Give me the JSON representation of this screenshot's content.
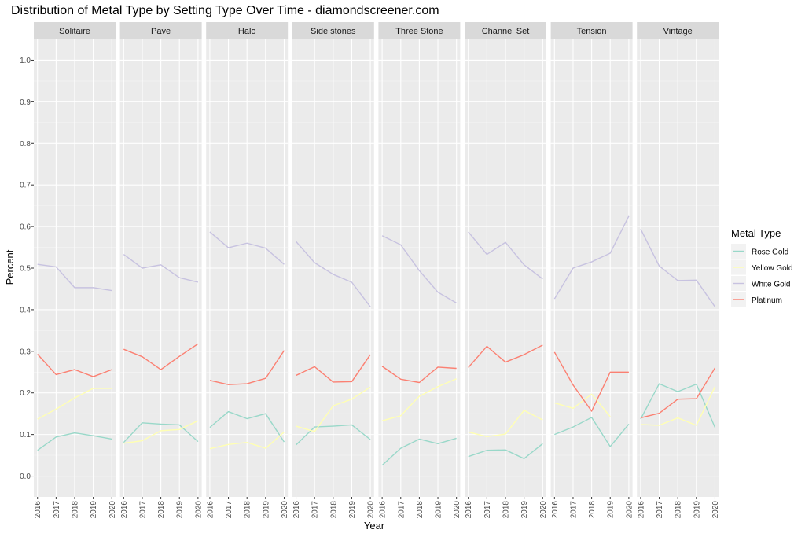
{
  "chart_data": {
    "type": "line",
    "title": "Distribution of Metal Type by Setting Type Over Time - diamondscreener.com",
    "xlabel": "Year",
    "ylabel": "Percent",
    "ylim": [
      -0.05,
      1.05
    ],
    "xlim": [
      2015.8,
      2020.2
    ],
    "yticks": [
      "0.0",
      "0.1",
      "0.2",
      "0.3",
      "0.4",
      "0.5",
      "0.6",
      "0.7",
      "0.8",
      "0.9",
      "1.0"
    ],
    "xticks": [
      "2016",
      "2017",
      "2018",
      "2019",
      "2020"
    ],
    "grid": true,
    "legend": {
      "title": "Metal Type",
      "position": "right"
    },
    "facets": [
      {
        "name": "Solitaire",
        "series": [
          {
            "name": "Rose Gold",
            "color": "#99d8c9",
            "x": [
              2016,
              2017,
              2018,
              2019,
              2020
            ],
            "values": [
              0.062,
              0.094,
              0.104,
              0.097,
              0.089
            ]
          },
          {
            "name": "Yellow Gold",
            "color": "#ffffb3",
            "x": [
              2016,
              2017,
              2018,
              2019,
              2020
            ],
            "values": [
              0.137,
              0.161,
              0.188,
              0.211,
              0.211
            ]
          },
          {
            "name": "White Gold",
            "color": "#c7c2e0",
            "x": [
              2016,
              2017,
              2018,
              2019,
              2020
            ],
            "values": [
              0.509,
              0.503,
              0.453,
              0.453,
              0.446
            ]
          },
          {
            "name": "Platinum",
            "color": "#fb8072",
            "x": [
              2016,
              2017,
              2018,
              2019,
              2020
            ],
            "values": [
              0.293,
              0.244,
              0.256,
              0.239,
              0.256
            ]
          }
        ]
      },
      {
        "name": "Pave",
        "series": [
          {
            "name": "Rose Gold",
            "color": "#99d8c9",
            "x": [
              2016,
              2017,
              2018,
              2019,
              2020
            ],
            "values": [
              0.081,
              0.128,
              0.125,
              0.123,
              0.083
            ]
          },
          {
            "name": "Yellow Gold",
            "color": "#ffffb3",
            "x": [
              2016,
              2017,
              2018,
              2019,
              2020
            ],
            "values": [
              0.079,
              0.085,
              0.109,
              0.112,
              0.133
            ]
          },
          {
            "name": "White Gold",
            "color": "#c7c2e0",
            "x": [
              2016,
              2017,
              2018,
              2019,
              2020
            ],
            "values": [
              0.533,
              0.5,
              0.508,
              0.477,
              0.466
            ]
          },
          {
            "name": "Platinum",
            "color": "#fb8072",
            "x": [
              2016,
              2017,
              2018,
              2019,
              2020
            ],
            "values": [
              0.305,
              0.287,
              0.256,
              0.288,
              0.318
            ]
          }
        ]
      },
      {
        "name": "Halo",
        "series": [
          {
            "name": "Rose Gold",
            "color": "#99d8c9",
            "x": [
              2016,
              2017,
              2018,
              2019,
              2020
            ],
            "values": [
              0.117,
              0.155,
              0.138,
              0.15,
              0.082
            ]
          },
          {
            "name": "Yellow Gold",
            "color": "#ffffb3",
            "x": [
              2016,
              2017,
              2018,
              2019,
              2020
            ],
            "values": [
              0.066,
              0.076,
              0.081,
              0.067,
              0.106
            ]
          },
          {
            "name": "White Gold",
            "color": "#c7c2e0",
            "x": [
              2016,
              2017,
              2018,
              2019,
              2020
            ],
            "values": [
              0.587,
              0.549,
              0.56,
              0.548,
              0.509
            ]
          },
          {
            "name": "Platinum",
            "color": "#fb8072",
            "x": [
              2016,
              2017,
              2018,
              2019,
              2020
            ],
            "values": [
              0.23,
              0.22,
              0.222,
              0.235,
              0.302
            ]
          }
        ]
      },
      {
        "name": "Side stones",
        "series": [
          {
            "name": "Rose Gold",
            "color": "#99d8c9",
            "x": [
              2016,
              2017,
              2018,
              2019,
              2020
            ],
            "values": [
              0.075,
              0.118,
              0.12,
              0.123,
              0.088
            ]
          },
          {
            "name": "Yellow Gold",
            "color": "#ffffb3",
            "x": [
              2016,
              2017,
              2018,
              2019,
              2020
            ],
            "values": [
              0.12,
              0.107,
              0.169,
              0.185,
              0.214
            ]
          },
          {
            "name": "White Gold",
            "color": "#c7c2e0",
            "x": [
              2016,
              2017,
              2018,
              2019,
              2020
            ],
            "values": [
              0.564,
              0.513,
              0.485,
              0.466,
              0.407
            ]
          },
          {
            "name": "Platinum",
            "color": "#fb8072",
            "x": [
              2016,
              2017,
              2018,
              2019,
              2020
            ],
            "values": [
              0.242,
              0.263,
              0.226,
              0.227,
              0.292
            ]
          }
        ]
      },
      {
        "name": "Three Stone",
        "series": [
          {
            "name": "Rose Gold",
            "color": "#99d8c9",
            "x": [
              2016,
              2017,
              2018,
              2019,
              2020
            ],
            "values": [
              0.026,
              0.067,
              0.089,
              0.078,
              0.091
            ]
          },
          {
            "name": "Yellow Gold",
            "color": "#ffffb3",
            "x": [
              2016,
              2017,
              2018,
              2019,
              2020
            ],
            "values": [
              0.133,
              0.145,
              0.192,
              0.215,
              0.234
            ]
          },
          {
            "name": "White Gold",
            "color": "#c7c2e0",
            "x": [
              2016,
              2017,
              2018,
              2019,
              2020
            ],
            "values": [
              0.578,
              0.556,
              0.494,
              0.442,
              0.416
            ]
          },
          {
            "name": "Platinum",
            "color": "#fb8072",
            "x": [
              2016,
              2017,
              2018,
              2019,
              2020
            ],
            "values": [
              0.264,
              0.233,
              0.225,
              0.262,
              0.259
            ]
          }
        ]
      },
      {
        "name": "Channel Set",
        "series": [
          {
            "name": "Rose Gold",
            "color": "#99d8c9",
            "x": [
              2016,
              2017,
              2018,
              2019,
              2020
            ],
            "values": [
              0.047,
              0.062,
              0.063,
              0.042,
              0.078
            ]
          },
          {
            "name": "Yellow Gold",
            "color": "#ffffb3",
            "x": [
              2016,
              2017,
              2018,
              2019,
              2020
            ],
            "values": [
              0.106,
              0.095,
              0.101,
              0.158,
              0.135
            ]
          },
          {
            "name": "White Gold",
            "color": "#c7c2e0",
            "x": [
              2016,
              2017,
              2018,
              2019,
              2020
            ],
            "values": [
              0.587,
              0.533,
              0.562,
              0.508,
              0.474
            ]
          },
          {
            "name": "Platinum",
            "color": "#fb8072",
            "x": [
              2016,
              2017,
              2018,
              2019,
              2020
            ],
            "values": [
              0.261,
              0.312,
              0.274,
              0.292,
              0.315
            ]
          }
        ]
      },
      {
        "name": "Tension",
        "series": [
          {
            "name": "Rose Gold",
            "color": "#99d8c9",
            "x": [
              2016,
              2017,
              2018,
              2019,
              2020
            ],
            "values": [
              0.1,
              0.118,
              0.141,
              0.071,
              0.125
            ]
          },
          {
            "name": "Yellow Gold",
            "color": "#ffffb3",
            "x": [
              2016,
              2017,
              2018,
              2019
            ],
            "values": [
              0.176,
              0.163,
              0.197,
              0.143
            ]
          },
          {
            "name": "White Gold",
            "color": "#c7c2e0",
            "x": [
              2016,
              2017,
              2018,
              2019,
              2020
            ],
            "values": [
              0.426,
              0.5,
              0.515,
              0.536,
              0.625
            ]
          },
          {
            "name": "Platinum",
            "color": "#fb8072",
            "x": [
              2016,
              2017,
              2018,
              2019,
              2020
            ],
            "values": [
              0.298,
              0.219,
              0.156,
              0.25,
              0.25
            ]
          }
        ]
      },
      {
        "name": "Vintage",
        "series": [
          {
            "name": "Rose Gold",
            "color": "#99d8c9",
            "x": [
              2016,
              2017,
              2018,
              2019,
              2020
            ],
            "values": [
              0.137,
              0.222,
              0.203,
              0.221,
              0.117
            ]
          },
          {
            "name": "Yellow Gold",
            "color": "#ffffb3",
            "x": [
              2016,
              2017,
              2018,
              2019,
              2020
            ],
            "values": [
              0.124,
              0.122,
              0.14,
              0.122,
              0.215
            ]
          },
          {
            "name": "White Gold",
            "color": "#c7c2e0",
            "x": [
              2016,
              2017,
              2018,
              2019,
              2020
            ],
            "values": [
              0.594,
              0.505,
              0.47,
              0.471,
              0.407
            ]
          },
          {
            "name": "Platinum",
            "color": "#fb8072",
            "x": [
              2016,
              2017,
              2018,
              2019,
              2020
            ],
            "values": [
              0.14,
              0.151,
              0.185,
              0.186,
              0.26
            ]
          }
        ]
      }
    ],
    "legend_entries": [
      {
        "name": "Rose Gold",
        "color": "#99d8c9"
      },
      {
        "name": "Yellow Gold",
        "color": "#ffffb3"
      },
      {
        "name": "White Gold",
        "color": "#c7c2e0"
      },
      {
        "name": "Platinum",
        "color": "#fb8072"
      }
    ]
  }
}
